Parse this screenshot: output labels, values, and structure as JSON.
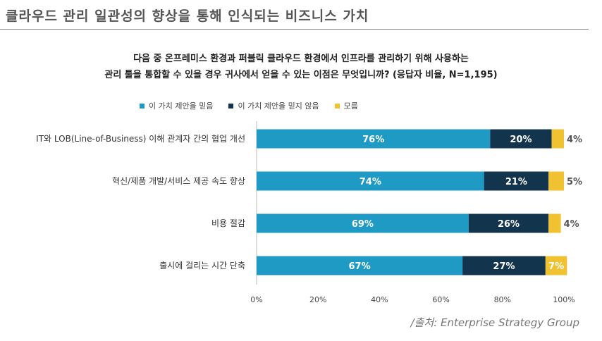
{
  "header": {
    "title": "클라우드 관리 일관성의 향상을 통해 인식되는 비즈니스 가치"
  },
  "chart_data": {
    "type": "bar",
    "orientation": "horizontal",
    "stacked": true,
    "title_lines": [
      "다음 중 온프레미스 환경과 퍼블릭 클라우드 환경에서 인프라를 관리하기 위해 사용하는",
      "관리 툴을 통합할 수 있을 경우 귀사에서 얻을 수 있는 이점은 무엇입니까? (응답자 비율, N=1,195)"
    ],
    "categories": [
      "IT와 LOB(Line-of-Business) 이해 관계자 간의 협업 개선",
      "혁신/제품 개발/서비스 제공 속도 향상",
      "비용 절감",
      "출시에 걸리는 시간 단축"
    ],
    "series": [
      {
        "name": "이 가치 제안을 믿음",
        "values": [
          76,
          74,
          69,
          67
        ],
        "labels": [
          "76%",
          "74%",
          "69%",
          "67%"
        ],
        "color": "#1e9ac4",
        "label_color": "#ffffff"
      },
      {
        "name": "이 가치 제안을 믿지 않음",
        "values": [
          20,
          21,
          26,
          27
        ],
        "labels": [
          "20%",
          "21%",
          "26%",
          "27%"
        ],
        "color": "#12354d",
        "label_color": "#ffffff"
      },
      {
        "name": "모름",
        "values": [
          4,
          5,
          4,
          7
        ],
        "labels": [
          "4%",
          "5%",
          "4%",
          "7%"
        ],
        "color": "#f0c232",
        "label_color": "#555555"
      }
    ],
    "xlim": [
      0,
      100
    ],
    "xticks": [
      "0%",
      "20%",
      "40%",
      "60%",
      "80%",
      "100%"
    ],
    "xtick_values": [
      0,
      20,
      40,
      60,
      80,
      100
    ],
    "grid": false,
    "legend_position": "top"
  },
  "source": "/출처: Enterprise Strategy Group"
}
